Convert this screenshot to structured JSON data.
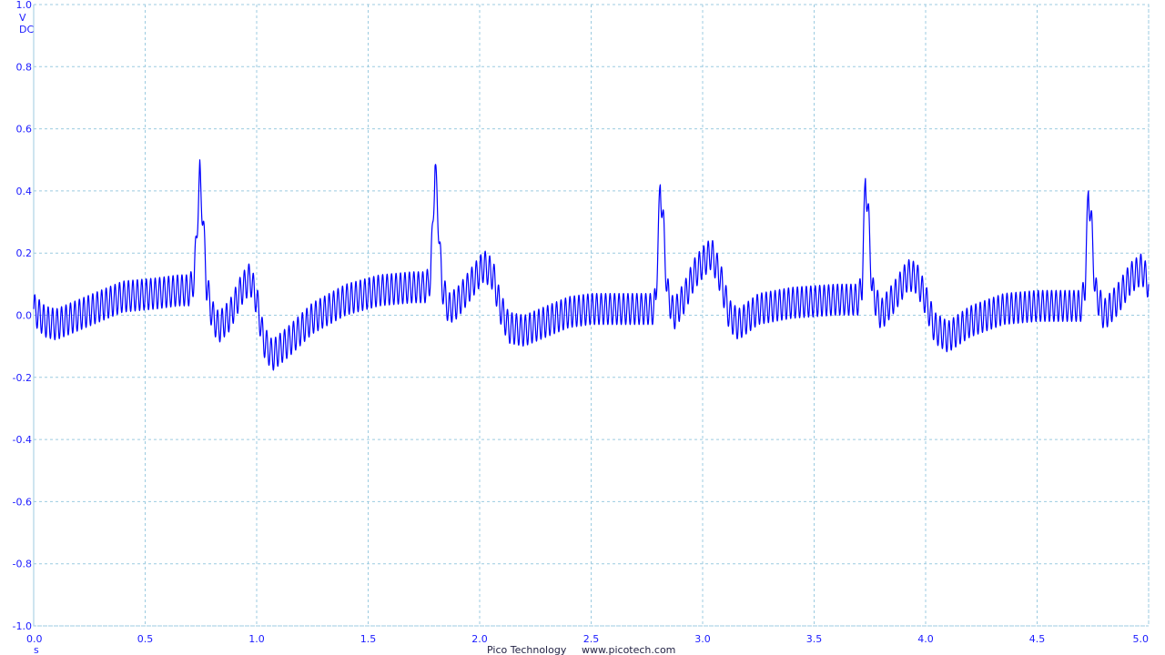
{
  "units": {
    "y_unit": "V",
    "coupling": "DC",
    "x_unit": "s"
  },
  "footer": {
    "brand": "Pico Technology",
    "website": "www.picotech.com"
  },
  "colors": {
    "trace": "#0000ff",
    "grid": "#9ccbe0",
    "labels": "#1a1aff",
    "background": "#ffffff"
  },
  "chart_data": {
    "type": "line",
    "xlim": [
      0.0,
      5.0
    ],
    "ylim": [
      -1.0,
      1.0
    ],
    "grid": true,
    "x_ticks": [
      "0.0",
      "0.5",
      "1.0",
      "1.5",
      "2.0",
      "2.5",
      "3.0",
      "3.5",
      "4.0",
      "4.5",
      "5.0"
    ],
    "y_ticks": [
      "1.0",
      "0.8",
      "0.6",
      "0.4",
      "0.2",
      "0.0",
      "-0.2",
      "-0.4",
      "-0.6",
      "-0.8",
      "-1.0"
    ],
    "mains_ripple": {
      "frequency_hz": 50,
      "amplitude_v": 0.05
    },
    "series": [
      {
        "points": [
          [
            0.0,
            0.02
          ],
          [
            0.05,
            -0.02
          ],
          [
            0.1,
            -0.03
          ],
          [
            0.2,
            0.0
          ],
          [
            0.3,
            0.03
          ],
          [
            0.4,
            0.06
          ],
          [
            0.55,
            0.07
          ],
          [
            0.65,
            0.08
          ],
          [
            0.7,
            0.08
          ],
          [
            0.72,
            0.12
          ],
          [
            0.745,
            0.45
          ],
          [
            0.76,
            0.3
          ],
          [
            0.775,
            0.1
          ],
          [
            0.8,
            0.0
          ],
          [
            0.83,
            -0.04
          ],
          [
            0.88,
            0.0
          ],
          [
            0.93,
            0.08
          ],
          [
            0.97,
            0.12
          ],
          [
            1.0,
            0.05
          ],
          [
            1.03,
            -0.08
          ],
          [
            1.07,
            -0.13
          ],
          [
            1.15,
            -0.08
          ],
          [
            1.25,
            -0.01
          ],
          [
            1.4,
            0.05
          ],
          [
            1.55,
            0.08
          ],
          [
            1.7,
            0.09
          ],
          [
            1.76,
            0.09
          ],
          [
            1.78,
            0.12
          ],
          [
            1.8,
            0.48
          ],
          [
            1.815,
            0.3
          ],
          [
            1.83,
            0.1
          ],
          [
            1.86,
            0.02
          ],
          [
            1.9,
            0.04
          ],
          [
            1.96,
            0.1
          ],
          [
            2.02,
            0.16
          ],
          [
            2.06,
            0.13
          ],
          [
            2.09,
            0.03
          ],
          [
            2.13,
            -0.04
          ],
          [
            2.2,
            -0.05
          ],
          [
            2.3,
            -0.02
          ],
          [
            2.4,
            0.01
          ],
          [
            2.5,
            0.02
          ],
          [
            2.6,
            0.02
          ],
          [
            2.7,
            0.02
          ],
          [
            2.78,
            0.02
          ],
          [
            2.79,
            0.05
          ],
          [
            2.81,
            0.42
          ],
          [
            2.825,
            0.28
          ],
          [
            2.84,
            0.08
          ],
          [
            2.87,
            0.0
          ],
          [
            2.92,
            0.06
          ],
          [
            2.96,
            0.13
          ],
          [
            3.0,
            0.17
          ],
          [
            3.04,
            0.2
          ],
          [
            3.08,
            0.12
          ],
          [
            3.12,
            0.0
          ],
          [
            3.16,
            -0.03
          ],
          [
            3.25,
            0.02
          ],
          [
            3.4,
            0.04
          ],
          [
            3.6,
            0.05
          ],
          [
            3.7,
            0.05
          ],
          [
            3.715,
            0.1
          ],
          [
            3.73,
            0.44
          ],
          [
            3.745,
            0.3
          ],
          [
            3.76,
            0.08
          ],
          [
            3.8,
            0.0
          ],
          [
            3.86,
            0.06
          ],
          [
            3.92,
            0.13
          ],
          [
            3.96,
            0.12
          ],
          [
            4.0,
            0.05
          ],
          [
            4.04,
            -0.04
          ],
          [
            4.1,
            -0.07
          ],
          [
            4.2,
            -0.02
          ],
          [
            4.35,
            0.02
          ],
          [
            4.5,
            0.03
          ],
          [
            4.65,
            0.03
          ],
          [
            4.7,
            0.03
          ],
          [
            4.715,
            0.1
          ],
          [
            4.73,
            0.4
          ],
          [
            4.745,
            0.28
          ],
          [
            4.76,
            0.08
          ],
          [
            4.8,
            0.0
          ],
          [
            4.86,
            0.05
          ],
          [
            4.92,
            0.12
          ],
          [
            4.97,
            0.15
          ],
          [
            5.0,
            0.1
          ]
        ]
      }
    ]
  }
}
